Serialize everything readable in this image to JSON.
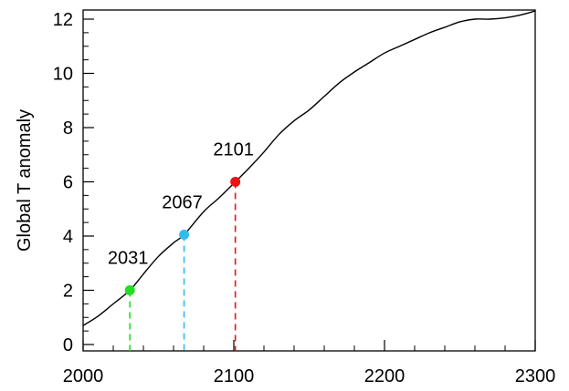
{
  "chart_data": {
    "type": "line",
    "ylabel": "Global T anomaly",
    "xlabel": "",
    "xlim": [
      2000,
      2300
    ],
    "ylim": [
      0,
      12.5
    ],
    "xticks": [
      2000,
      2100,
      2200,
      2300
    ],
    "yticks": [
      0,
      2,
      4,
      6,
      8,
      10,
      12
    ],
    "x_tick_labels": [
      "2000",
      "2100",
      "2200",
      "2300"
    ],
    "y_tick_labels": [
      "0",
      "2",
      "4",
      "6",
      "8",
      "10",
      "12"
    ],
    "grid": false,
    "legend": "none",
    "series": [
      {
        "color": "#000000",
        "x": [
          2000,
          2010,
          2020,
          2031,
          2040,
          2050,
          2060,
          2067,
          2080,
          2090,
          2101,
          2110,
          2120,
          2130,
          2140,
          2150,
          2160,
          2170,
          2180,
          2190,
          2200,
          2210,
          2220,
          2230,
          2240,
          2250,
          2260,
          2270,
          2280,
          2290,
          2300
        ],
        "y": [
          0.7,
          1.05,
          1.5,
          2.0,
          2.6,
          3.25,
          3.75,
          4.05,
          4.9,
          5.4,
          6.0,
          6.5,
          7.1,
          7.75,
          8.25,
          8.65,
          9.15,
          9.65,
          10.05,
          10.4,
          10.75,
          11.0,
          11.25,
          11.5,
          11.7,
          11.9,
          12.0,
          12.0,
          12.05,
          12.15,
          12.3
        ]
      }
    ],
    "annotations": [
      {
        "label": "2031",
        "x": 2031,
        "y": 2.0,
        "color": "#22dd22"
      },
      {
        "label": "2067",
        "x": 2067,
        "y": 4.05,
        "color": "#33bbee"
      },
      {
        "label": "2101",
        "x": 2101,
        "y": 6.0,
        "color": "#ee1111"
      }
    ]
  }
}
